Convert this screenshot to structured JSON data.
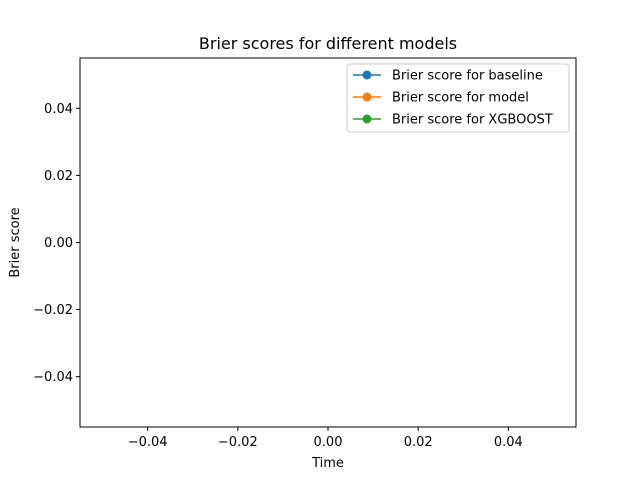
{
  "chart_data": {
    "type": "line",
    "title": "Brier scores for different models",
    "xlabel": "Time",
    "ylabel": "Brier score",
    "xlim": [
      -0.055,
      0.055
    ],
    "ylim": [
      -0.055,
      0.055
    ],
    "xticks": [
      -0.04,
      -0.02,
      0.0,
      0.02,
      0.04
    ],
    "xtick_labels": [
      "−0.04",
      "−0.02",
      "0.00",
      "0.02",
      "0.04"
    ],
    "yticks": [
      -0.04,
      -0.02,
      0.0,
      0.02,
      0.04
    ],
    "ytick_labels": [
      "−0.04",
      "−0.02",
      "0.00",
      "0.02",
      "0.04"
    ],
    "grid": false,
    "legend_position": "upper right",
    "series": [
      {
        "name": "Brier score for baseline",
        "color": "#1f77b4",
        "marker": "circle",
        "x": [],
        "y": []
      },
      {
        "name": "Brier score for model",
        "color": "#ff7f0e",
        "marker": "circle",
        "x": [],
        "y": []
      },
      {
        "name": "Brier score for XGBOOST",
        "color": "#2ca02c",
        "marker": "circle",
        "x": [],
        "y": []
      }
    ]
  }
}
